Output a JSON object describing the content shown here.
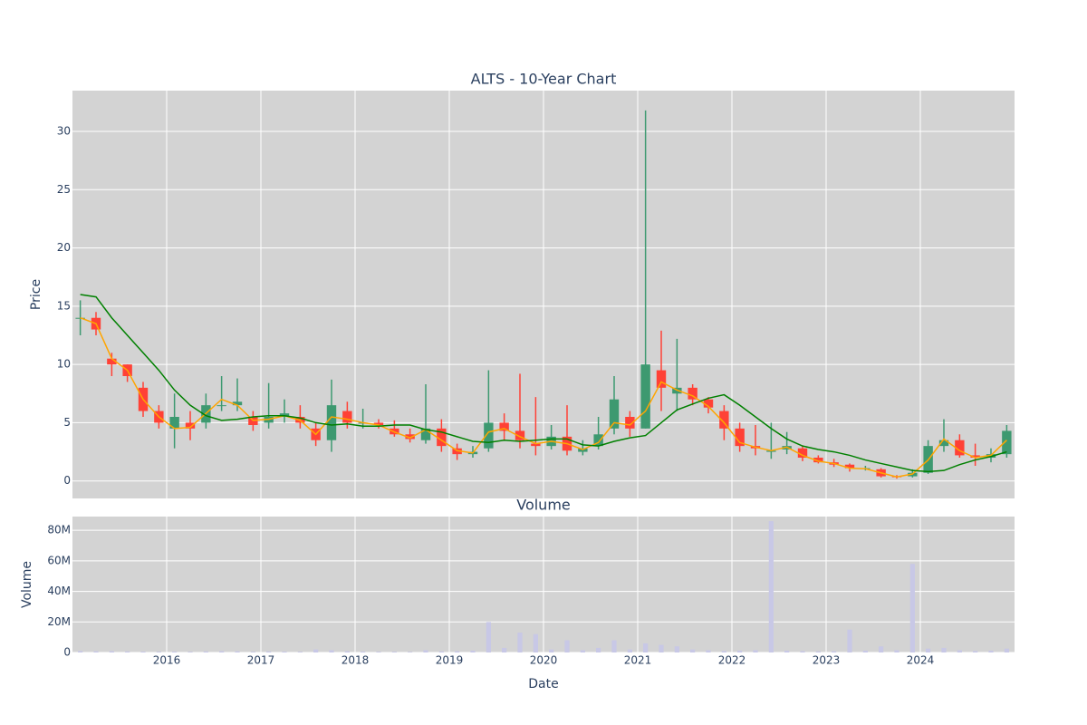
{
  "chart_data": [
    {
      "type": "candlestick",
      "title": "ALTS - 10-Year Chart",
      "ylabel": "Price",
      "x": [
        2015.083,
        2015.25,
        2015.417,
        2015.583,
        2015.75,
        2015.917,
        2016.083,
        2016.25,
        2016.417,
        2016.583,
        2016.75,
        2016.917,
        2017.083,
        2017.25,
        2017.417,
        2017.583,
        2017.75,
        2017.917,
        2018.083,
        2018.25,
        2018.417,
        2018.583,
        2018.75,
        2018.917,
        2019.083,
        2019.25,
        2019.417,
        2019.583,
        2019.75,
        2019.917,
        2020.083,
        2020.25,
        2020.417,
        2020.583,
        2020.75,
        2020.917,
        2021.083,
        2021.25,
        2021.417,
        2021.583,
        2021.75,
        2021.917,
        2022.083,
        2022.25,
        2022.417,
        2022.583,
        2022.75,
        2022.917,
        2023.083,
        2023.25,
        2023.417,
        2023.583,
        2023.75,
        2023.917,
        2024.083,
        2024.25,
        2024.417,
        2024.583,
        2024.75,
        2024.917
      ],
      "open": [
        14,
        14,
        10.5,
        10,
        8,
        6,
        4.5,
        5,
        5,
        6.5,
        6.5,
        5.5,
        5,
        5.5,
        5.5,
        4.5,
        3.5,
        6,
        5,
        5,
        4.5,
        4,
        3.5,
        4.5,
        2.8,
        2.3,
        2.8,
        5,
        4.3,
        3.2,
        3,
        3.8,
        2.5,
        3,
        4.5,
        5.5,
        4.5,
        9.5,
        7.5,
        8,
        7,
        6,
        4.5,
        3,
        2.5,
        2.7,
        2.8,
        2,
        1.6,
        1.4,
        1.1,
        1,
        0.4,
        0.4,
        0.7,
        3,
        3.5,
        2.2,
        2,
        2.3
      ],
      "high": [
        15.5,
        14.5,
        11,
        10,
        8.5,
        6.5,
        7.5,
        6,
        7.5,
        9,
        8.8,
        6,
        8.4,
        7,
        6.5,
        5,
        8.7,
        6.8,
        6.2,
        5.3,
        5.2,
        4.5,
        8.3,
        5.3,
        3.2,
        3,
        9.5,
        5.8,
        9.2,
        7.2,
        4.8,
        6.5,
        3.5,
        5.5,
        9,
        6,
        31.8,
        12.9,
        12.2,
        8.3,
        7.2,
        6.5,
        5,
        4.8,
        5,
        4.2,
        3,
        2.2,
        1.9,
        1.5,
        1.3,
        1.1,
        0.5,
        1,
        3.5,
        5.3,
        4,
        3.2,
        2.8,
        4.8
      ],
      "low": [
        12.5,
        12.5,
        9,
        8.5,
        5.5,
        4.5,
        2.8,
        3.5,
        4.5,
        6,
        6,
        4.3,
        4.5,
        5,
        4.5,
        3,
        2.5,
        4.5,
        4.5,
        4.5,
        3.8,
        3.3,
        3.2,
        2.5,
        1.8,
        2,
        2.5,
        3.5,
        2.8,
        2.2,
        2.7,
        2.2,
        2.2,
        2.7,
        4,
        3.8,
        4.5,
        6,
        6,
        6.5,
        5.8,
        3.5,
        2.5,
        2.2,
        1.9,
        2.3,
        1.7,
        1.5,
        1.2,
        0.8,
        0.9,
        0.3,
        0.2,
        0.3,
        0.6,
        2.5,
        2,
        1.3,
        1.6,
        2
      ],
      "close": [
        14,
        13,
        10,
        9,
        6,
        5,
        5.5,
        4.5,
        6.5,
        6.5,
        6.8,
        4.8,
        5.5,
        5.8,
        5,
        3.5,
        6.5,
        5,
        5,
        4.8,
        4,
        3.6,
        4.5,
        3,
        2.3,
        2.5,
        5,
        4.3,
        3.5,
        3,
        3.8,
        2.6,
        2.8,
        4,
        7,
        4.5,
        10,
        8,
        8,
        7,
        6.3,
        4.5,
        3,
        2.8,
        2.6,
        3,
        2,
        1.6,
        1.4,
        1.1,
        1.1,
        0.4,
        0.35,
        0.7,
        3,
        3.5,
        2.2,
        2,
        2.3,
        4.3
      ],
      "increasing_color": "#3d9970",
      "decreasing_color": "#ff4136",
      "lines": [
        {
          "color": "#ffa500",
          "values": [
            14,
            13.5,
            10.5,
            9.5,
            7,
            5.5,
            4.5,
            4.6,
            5.8,
            7,
            6.5,
            5.2,
            5.3,
            5.6,
            5.2,
            4,
            5.5,
            5.3,
            5,
            4.8,
            4.2,
            3.7,
            4.4,
            3.5,
            2.6,
            2.4,
            4.2,
            4.5,
            3.8,
            3.2,
            3.4,
            3.2,
            2.7,
            3.3,
            5,
            4.8,
            6,
            8.5,
            7.8,
            7.3,
            6.4,
            5,
            3.3,
            2.9,
            2.6,
            2.9,
            2.2,
            1.7,
            1.5,
            1.1,
            1.05,
            0.7,
            0.35,
            0.6,
            1.8,
            3.6,
            2.6,
            2,
            2.2,
            3.5
          ]
        },
        {
          "color": "#008000",
          "values": [
            16,
            15.8,
            14,
            12.5,
            11,
            9.5,
            7.8,
            6.5,
            5.6,
            5.2,
            5.3,
            5.5,
            5.6,
            5.6,
            5.4,
            5,
            4.8,
            4.9,
            4.7,
            4.7,
            4.8,
            4.8,
            4.4,
            4.2,
            3.8,
            3.4,
            3.3,
            3.5,
            3.4,
            3.5,
            3.6,
            3.6,
            3.1,
            3,
            3.4,
            3.7,
            3.9,
            5,
            6.1,
            6.6,
            7.1,
            7.4,
            6.5,
            5.5,
            4.5,
            3.6,
            3,
            2.7,
            2.5,
            2.2,
            1.8,
            1.5,
            1.2,
            0.9,
            0.8,
            0.9,
            1.4,
            1.8,
            2.1,
            2.5
          ]
        }
      ],
      "xlim": [
        2015,
        2025
      ],
      "ylim": [
        -1.5,
        33.5
      ],
      "yticks": [
        0,
        5,
        10,
        15,
        20,
        25,
        30
      ],
      "grid": true
    },
    {
      "type": "bar",
      "title": "Volume",
      "ylabel": "Volume",
      "xlabel": "Date",
      "x": [
        2015.083,
        2015.25,
        2015.417,
        2015.583,
        2015.75,
        2015.917,
        2016.083,
        2016.25,
        2016.417,
        2016.583,
        2016.75,
        2016.917,
        2017.083,
        2017.25,
        2017.417,
        2017.583,
        2017.75,
        2017.917,
        2018.083,
        2018.25,
        2018.417,
        2018.583,
        2018.75,
        2018.917,
        2019.083,
        2019.25,
        2019.417,
        2019.583,
        2019.75,
        2019.917,
        2020.083,
        2020.25,
        2020.417,
        2020.583,
        2020.75,
        2020.917,
        2021.083,
        2021.25,
        2021.417,
        2021.583,
        2021.75,
        2021.917,
        2022.083,
        2022.25,
        2022.417,
        2022.583,
        2022.75,
        2022.917,
        2023.083,
        2023.25,
        2023.417,
        2023.583,
        2023.75,
        2023.917,
        2024.083,
        2024.25,
        2024.417,
        2024.583,
        2024.75,
        2024.917
      ],
      "values": [
        1000000,
        800000,
        900000,
        700000,
        600000,
        500000,
        600000,
        500000,
        700000,
        900000,
        800000,
        500000,
        700000,
        600000,
        500000,
        2000000,
        1500000,
        800000,
        600000,
        500000,
        500000,
        400000,
        1500000,
        700000,
        800000,
        1200000,
        20000000,
        3000000,
        13000000,
        12000000,
        2000000,
        8000000,
        1500000,
        3000000,
        8000000,
        2000000,
        6000000,
        5000000,
        4000000,
        2000000,
        1500000,
        1000000,
        1200000,
        1500000,
        86000000,
        1200000,
        900000,
        700000,
        800000,
        15000000,
        1200000,
        4000000,
        1500000,
        58000000,
        2500000,
        3000000,
        1500000,
        1000000,
        1200000,
        2500000
      ],
      "color": "#c8c8e6",
      "xlim": [
        2015,
        2025
      ],
      "ylim": [
        0,
        89000000
      ],
      "xticks": [
        2016,
        2017,
        2018,
        2019,
        2020,
        2021,
        2022,
        2023,
        2024
      ],
      "yticks": [
        0,
        {
          "value": 20000000,
          "label": "20M"
        },
        {
          "value": 40000000,
          "label": "40M"
        },
        {
          "value": 60000000,
          "label": "60M"
        },
        {
          "value": 80000000,
          "label": "80M"
        }
      ],
      "grid": true
    }
  ]
}
